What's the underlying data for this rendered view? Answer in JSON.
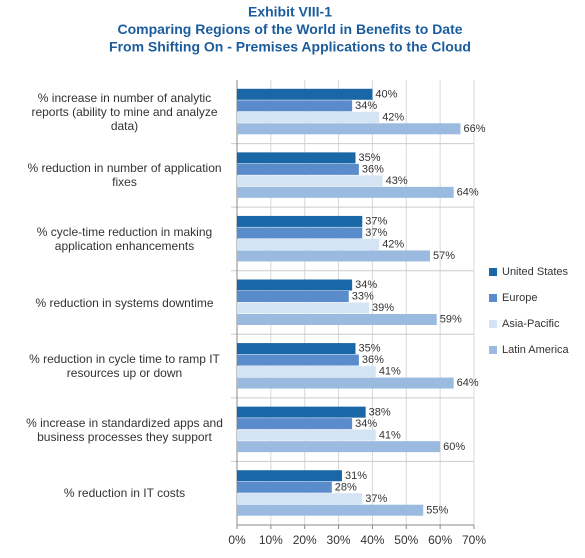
{
  "chart_data": {
    "type": "grouped-horizontal-bar",
    "title_lines": [
      "Exhibit VIII-1",
      "Comparing Regions of the World in Benefits to Date",
      "From Shifting On - Premises Applications to the Cloud"
    ],
    "categories": [
      "% increase in number of analytic reports (ability to mine and analyze data)",
      "% reduction in number of application fixes",
      "% cycle-time reduction in making application enhancements",
      "% reduction in systems downtime",
      "% reduction in cycle time to ramp IT resources up or down",
      "% increase in standardized apps and business processes they support",
      "% reduction in IT costs"
    ],
    "series": [
      {
        "name": "United States",
        "color": "#1a67a8",
        "values": [
          40,
          35,
          37,
          34,
          35,
          38,
          31
        ],
        "value_labels": [
          "40%",
          "35%",
          "37%",
          "34%",
          "35%",
          "38%",
          "31%"
        ]
      },
      {
        "name": "Europe",
        "color": "#5a8ccb",
        "values": [
          34,
          36,
          37,
          33,
          36,
          34,
          28
        ],
        "value_labels": [
          "34%",
          "36%",
          "37%",
          "33%",
          "36%",
          "34%",
          "28%"
        ]
      },
      {
        "name": "Asia-Pacific",
        "color": "#d4e4f4",
        "values": [
          42,
          43,
          42,
          39,
          41,
          41,
          37
        ],
        "value_labels": [
          "42%",
          "43%",
          "42%",
          "39%",
          "41%",
          "41%",
          "37%"
        ]
      },
      {
        "name": "Latin America",
        "color": "#9bbadf",
        "values": [
          66,
          64,
          57,
          59,
          64,
          60,
          55
        ],
        "value_labels": [
          "66%",
          "64%",
          "57%",
          "59%",
          "64%",
          "60%",
          "55%"
        ]
      }
    ],
    "xlim": [
      0,
      70
    ],
    "xticks": [
      {
        "value": 0,
        "label": "0%"
      },
      {
        "value": 10,
        "label": "10%"
      },
      {
        "value": 20,
        "label": "20%"
      },
      {
        "value": 30,
        "label": "30%"
      },
      {
        "value": 40,
        "label": "40%"
      },
      {
        "value": 50,
        "label": "50%"
      },
      {
        "value": 60,
        "label": "60%"
      },
      {
        "value": 70,
        "label": "70%"
      }
    ],
    "grid": true,
    "legend": "right"
  }
}
